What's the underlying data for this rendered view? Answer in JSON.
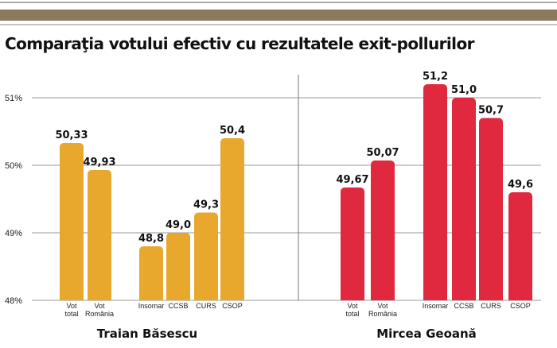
{
  "chart_data": {
    "type": "bar",
    "title": "Comparaţia votului efectiv cu rezultatele exit-pollurilor",
    "ylim": [
      48,
      51.5
    ],
    "yticks": [
      {
        "value": 48,
        "label": "48%"
      },
      {
        "value": 49,
        "label": "49%"
      },
      {
        "value": 50,
        "label": "50%"
      },
      {
        "value": 51,
        "label": "51%"
      }
    ],
    "grid": true,
    "groups": [
      {
        "name": "Traian Băsescu",
        "color": "#E8A82E",
        "bars": [
          {
            "category": [
              "Vot",
              "total"
            ],
            "value": 50.33,
            "label": "50,33"
          },
          {
            "category": [
              "Vot",
              "România"
            ],
            "value": 49.93,
            "label": "49,93"
          },
          {
            "category": [
              "Insomar"
            ],
            "value": 48.8,
            "label": "48,8"
          },
          {
            "category": [
              "CCSB"
            ],
            "value": 49.0,
            "label": "49,0"
          },
          {
            "category": [
              "CURS"
            ],
            "value": 49.3,
            "label": "49,3"
          },
          {
            "category": [
              "CSOP"
            ],
            "value": 50.4,
            "label": "50,4"
          }
        ]
      },
      {
        "name": "Mircea Geoană",
        "color": "#E0283F",
        "bars": [
          {
            "category": [
              "Vot",
              "total"
            ],
            "value": 49.67,
            "label": "49,67"
          },
          {
            "category": [
              "Vot",
              "România"
            ],
            "value": 50.07,
            "label": "50,07"
          },
          {
            "category": [
              "Insomar"
            ],
            "value": 51.2,
            "label": "51,2"
          },
          {
            "category": [
              "CCSB"
            ],
            "value": 51.0,
            "label": "51,0"
          },
          {
            "category": [
              "CURS"
            ],
            "value": 50.7,
            "label": "50,7"
          },
          {
            "category": [
              "CSOP"
            ],
            "value": 49.6,
            "label": "49,6"
          }
        ]
      }
    ]
  },
  "colors": {
    "header_band": "#8C7A5C",
    "grid": "#9A9A9A",
    "divider": "#777777"
  }
}
